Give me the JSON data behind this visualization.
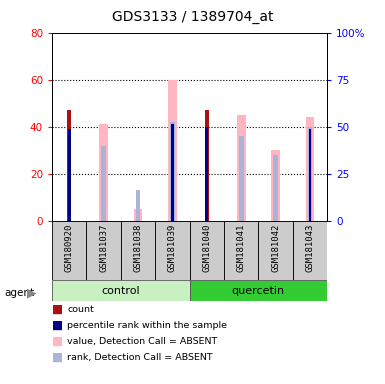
{
  "title": "GDS3133 / 1389704_at",
  "samples": [
    "GSM180920",
    "GSM181037",
    "GSM181038",
    "GSM181039",
    "GSM181040",
    "GSM181041",
    "GSM181042",
    "GSM181043"
  ],
  "count_values": [
    47,
    0,
    0,
    0,
    47,
    0,
    0,
    0
  ],
  "percentile_rank_values": [
    39,
    0,
    0,
    41,
    40,
    0,
    0,
    39
  ],
  "absent_value_values": [
    0,
    41,
    5,
    60,
    0,
    45,
    30,
    44
  ],
  "absent_rank_values": [
    0,
    32,
    13,
    42,
    0,
    36,
    28,
    40
  ],
  "left_ylim": [
    0,
    80
  ],
  "right_ylim": [
    0,
    100
  ],
  "left_yticks": [
    0,
    20,
    40,
    60,
    80
  ],
  "right_yticks": [
    0,
    25,
    50,
    75,
    100
  ],
  "right_yticklabels": [
    "0",
    "25",
    "50",
    "75",
    "100%"
  ],
  "count_color": "#aa1111",
  "percentile_color": "#000088",
  "absent_value_color": "#ffb6c1",
  "absent_rank_color": "#aab4d8",
  "control_color_light": "#c8f0c0",
  "control_color_dark": "#50cc50",
  "quercetin_color": "#33cc33",
  "gray_color": "#cccccc"
}
